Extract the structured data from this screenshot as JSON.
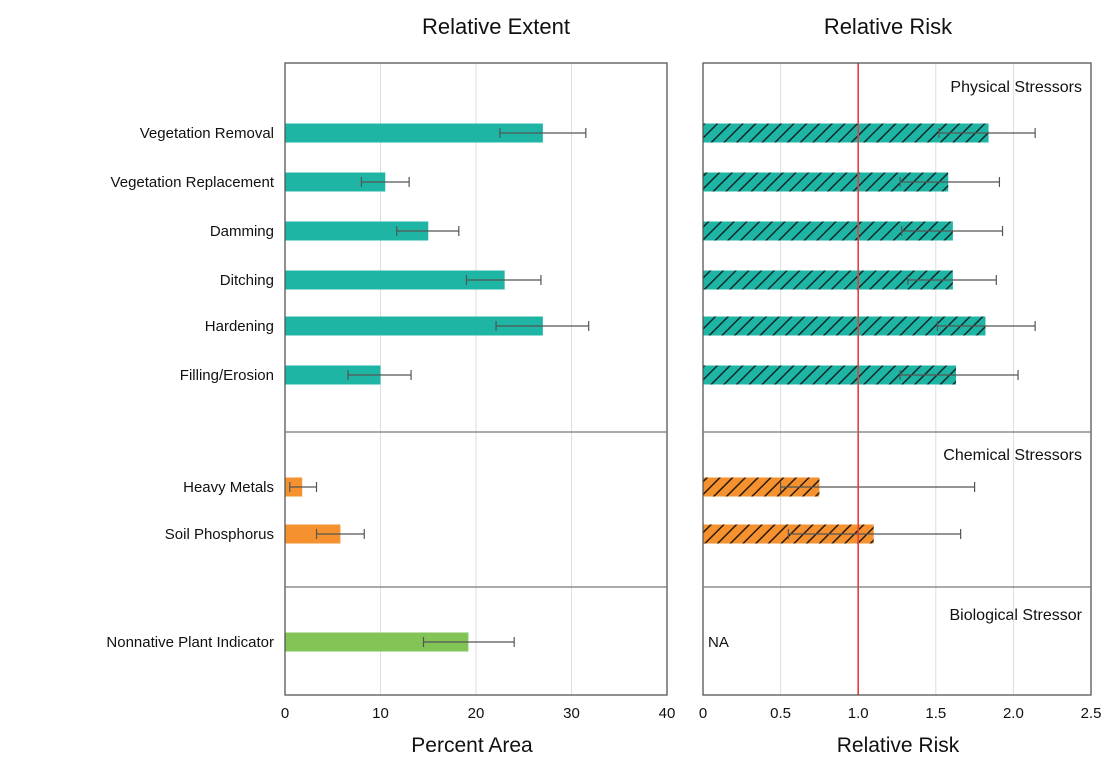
{
  "chart_data": [
    {
      "type": "bar",
      "orientation": "horizontal",
      "title": "Relative Extent",
      "xlabel": "Percent Area",
      "xlim": [
        0,
        40
      ],
      "xticks": [
        "0",
        "10",
        "20",
        "30",
        "40"
      ],
      "grid": true,
      "groups": [
        {
          "name": "Physical",
          "color": "#1fb5a5",
          "items": [
            {
              "label": "Vegetation Removal",
              "value": 27,
              "err_low": 22.5,
              "err_high": 31.5
            },
            {
              "label": "Vegetation Replacement",
              "value": 10.5,
              "err_low": 8,
              "err_high": 13
            },
            {
              "label": "Damming",
              "value": 15,
              "err_low": 11.7,
              "err_high": 18.2
            },
            {
              "label": "Ditching",
              "value": 23,
              "err_low": 19,
              "err_high": 26.8
            },
            {
              "label": "Hardening",
              "value": 27,
              "err_low": 22.1,
              "err_high": 31.8
            },
            {
              "label": "Filling/Erosion",
              "value": 10,
              "err_low": 6.6,
              "err_high": 13.2
            }
          ]
        },
        {
          "name": "Chemical",
          "color": "#f5922f",
          "items": [
            {
              "label": "Heavy Metals",
              "value": 1.8,
              "err_low": 0.5,
              "err_high": 3.3
            },
            {
              "label": "Soil Phosphorus",
              "value": 5.8,
              "err_low": 3.3,
              "err_high": 8.3
            }
          ]
        },
        {
          "name": "Biological",
          "color": "#82c456",
          "items": [
            {
              "label": "Nonnative Plant Indicator",
              "value": 19.2,
              "err_low": 14.5,
              "err_high": 24
            }
          ]
        }
      ]
    },
    {
      "type": "bar",
      "orientation": "horizontal",
      "title": "Relative Risk",
      "xlabel": "Relative Risk",
      "xlim": [
        0,
        2.5
      ],
      "xticks": [
        "0",
        "0.5",
        "1.0",
        "1.5",
        "2.0",
        "2.5"
      ],
      "reference_line": {
        "value": 1.0,
        "color": "#e14040"
      },
      "pattern": "diagonal-hatch",
      "grid": true,
      "groups": [
        {
          "name": "Physical Stressors",
          "color": "#1fb5a5",
          "items": [
            {
              "label": "Vegetation Removal",
              "value": 1.84,
              "err_low": 1.52,
              "err_high": 2.14
            },
            {
              "label": "Vegetation Replacement",
              "value": 1.58,
              "err_low": 1.27,
              "err_high": 1.91
            },
            {
              "label": "Damming",
              "value": 1.61,
              "err_low": 1.28,
              "err_high": 1.93
            },
            {
              "label": "Ditching",
              "value": 1.61,
              "err_low": 1.32,
              "err_high": 1.89
            },
            {
              "label": "Hardening",
              "value": 1.82,
              "err_low": 1.51,
              "err_high": 2.14
            },
            {
              "label": "Filling/Erosion",
              "value": 1.63,
              "err_low": 1.27,
              "err_high": 2.03
            }
          ]
        },
        {
          "name": "Chemical Stressors",
          "color": "#f5922f",
          "items": [
            {
              "label": "Heavy Metals",
              "value": 0.75,
              "err_low": 0.5,
              "err_high": 1.75
            },
            {
              "label": "Soil Phosphorus",
              "value": 1.1,
              "err_low": 0.55,
              "err_high": 1.66
            }
          ]
        },
        {
          "name": "Biological Stressor",
          "color": "#82c456",
          "na_label": "NA",
          "items": []
        }
      ]
    }
  ]
}
